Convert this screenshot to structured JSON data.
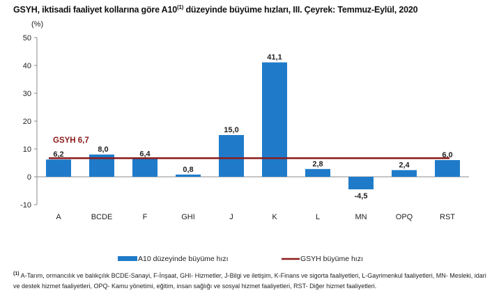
{
  "chart_data": {
    "type": "bar",
    "title": "GSYH, iktisadi faaliyet kollarına göre A10",
    "title_sup": "(1)",
    "title_rest": " düzeyinde büyüme hızları, III. Çeyrek: Temmuz-Eylül, 2020",
    "ylabel": "(%)",
    "ylim": [
      -10,
      50
    ],
    "yticks": [
      50,
      40,
      30,
      20,
      10,
      0,
      -10
    ],
    "categories": [
      "A",
      "BCDE",
      "F",
      "GHI",
      "J",
      "K",
      "L",
      "MN",
      "OPQ",
      "RST"
    ],
    "series": [
      {
        "name": "A10 düzeyinde  büyüme hızı",
        "type": "bar",
        "color": "#1F7BC9",
        "values": [
          6.2,
          8.0,
          6.4,
          0.8,
          15.0,
          41.1,
          2.8,
          -4.5,
          2.4,
          6.0
        ],
        "labels": [
          "6,2",
          "8,0",
          "6,4",
          "0,8",
          "15,0",
          "41,1",
          "2,8",
          "-4,5",
          "2,4",
          "6,0"
        ]
      },
      {
        "name": "GSYH büyüme hızı",
        "type": "line",
        "color": "#8B1A1A",
        "value": 6.7,
        "label": "GSYH 6,7"
      }
    ],
    "grid": false,
    "legend": "bottom"
  },
  "footnote": {
    "sup": "(1)",
    "text": " A-Tarım, ormancılık ve balıkçılık BCDE-Sanayi, F-İnşaat, GHI- Hizmetler, J-Bilgi ve iletişim, K-Finans ve sigorta faaliyetleri, L-Gayrimenkul faaliyetleri, MN- Mesleki, idari ve destek hizmet faaliyetleri, OPQ- Kamu yönetimi, eğitim, insan sağlığı ve sosyal hizmet faaliyetleri, RST- Diğer hizmet faaliyetleri."
  }
}
